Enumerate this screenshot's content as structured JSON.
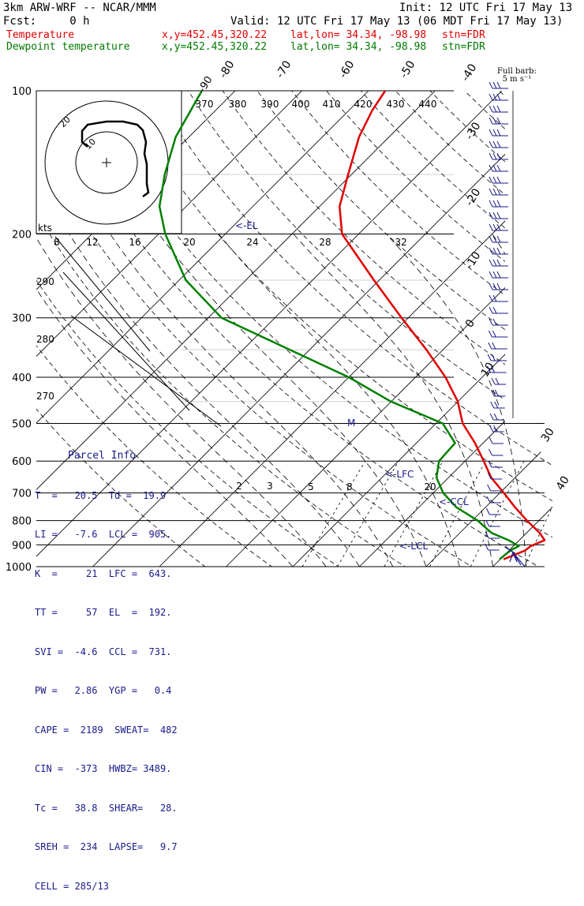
{
  "header": {
    "model": "3km ARW-WRF -- NCAR/MMM",
    "init": "Init: 12 UTC Fri 17 May 13",
    "fcst": "Fcst:     0 h",
    "valid": "Valid: 12 UTC Fri 17 May 13 (06 MDT Fri 17 May 13)",
    "temperature_label": "Temperature",
    "dewpoint_label": "Dewpoint temperature",
    "xy": "x,y=452.45,320.22",
    "latlon": "lat,lon= 34.34, -98.98",
    "station": "stn=FDR"
  },
  "barb_legend": {
    "line1": "Full barb:",
    "line2": "5 m s⁻¹"
  },
  "parcel_info": {
    "title": "Parcel Info",
    "rows": [
      "T  =   20.5  Td =  19.9",
      "LI =   -7.6  LCL =  905.",
      "K  =     21  LFC =  643.",
      "TT =     57  EL  =  192.",
      "SVI =  -4.6  CCL =  731.",
      "PW =   2.86  YGP =   0.4",
      "CAPE =  2189  SWEAT=  482",
      "CIN =  -373  HWBZ= 3489.",
      "Tc =   38.8  SHEAR=   28.",
      "SREH =  234  LAPSE=   9.7",
      "CELL = 285/13"
    ]
  },
  "colors": {
    "temperature": "#e00000",
    "dewpoint": "#008000",
    "info": "#1a1a8c"
  },
  "chart_data": {
    "type": "line",
    "series": [
      {
        "name": "Temperature",
        "p": [
          965,
          925,
          905,
          880,
          850,
          800,
          750,
          700,
          650,
          600,
          550,
          500,
          450,
          400,
          350,
          300,
          250,
          200,
          175,
          150,
          125,
          110,
          100
        ],
        "t": [
          20.5,
          22.4,
          22.6,
          23.8,
          22.0,
          18.2,
          14.4,
          10.6,
          6.4,
          2.8,
          -1.2,
          -6.0,
          -10.0,
          -15.5,
          -22.5,
          -31.0,
          -40.8,
          -52.5,
          -57.0,
          -60.5,
          -64.5,
          -66.5,
          -67.5
        ]
      },
      {
        "name": "Dewpoint temperature",
        "p": [
          965,
          925,
          905,
          880,
          850,
          800,
          750,
          700,
          650,
          600,
          550,
          500,
          450,
          400,
          350,
          300,
          250,
          200,
          175,
          150,
          125,
          100
        ],
        "t": [
          19.9,
          20.2,
          20.8,
          18.4,
          14.8,
          10.8,
          5.6,
          1.5,
          -1.8,
          -3.9,
          -4.2,
          -9.0,
          -20.0,
          -30.0,
          -43.0,
          -58.0,
          -69.0,
          -79.0,
          -84.0,
          -88.0,
          -92.0,
          -95.0
        ]
      }
    ],
    "pressure_levels": [
      100,
      200,
      300,
      400,
      500,
      600,
      700,
      800,
      900,
      1000
    ],
    "isotherm_labels": [
      -90,
      -80,
      -70,
      -60,
      -50,
      -40,
      -30,
      -20,
      -10,
      0,
      10,
      20,
      30,
      40
    ],
    "potential_temp_labels": [
      370,
      380,
      390,
      400,
      410,
      420,
      430,
      440
    ],
    "dry_adiabat_lower_labels": [
      290,
      280,
      270
    ],
    "mixing_ratio_labels": [
      2,
      3,
      5,
      8,
      20
    ],
    "hodograph": {
      "unit": "kts",
      "ring_labels": [
        "10",
        "20"
      ],
      "speed_axis_labels": [
        "8",
        "12",
        "16",
        "20",
        "24",
        "28",
        "32"
      ]
    },
    "annotations": [
      "<-EL",
      "<-LFC",
      "<-CCL",
      "<-LCL",
      "M"
    ],
    "ylim": [
      1000,
      100
    ],
    "wind_barbs": {
      "count": 40
    }
  }
}
